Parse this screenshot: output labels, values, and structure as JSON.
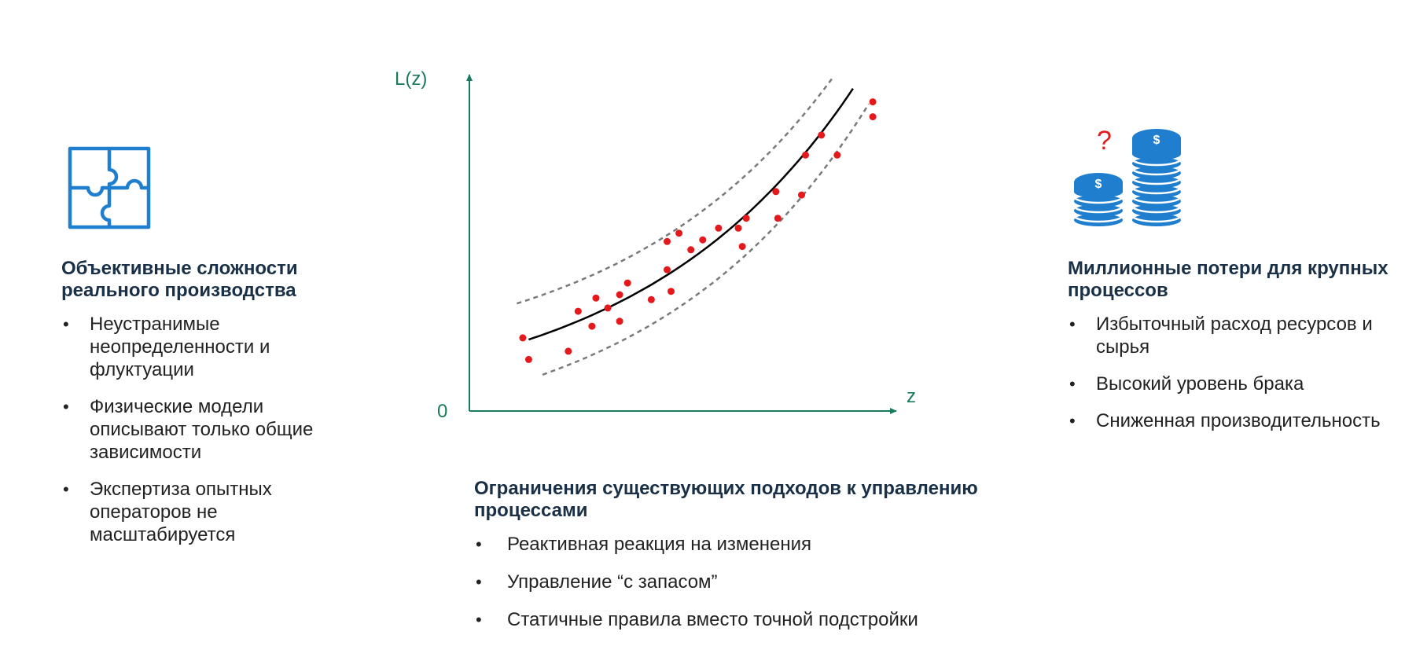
{
  "colors": {
    "heading": "#1a3047",
    "accent_blue": "#1f7fce",
    "axis": "#1a7a5e",
    "curve": "#000000",
    "band": "#7a7a7a",
    "points": "#e5191b",
    "question": "#e5191b"
  },
  "icons": {
    "left": "puzzle-icon",
    "right": "coin-stacks-icon",
    "question_mark": "?"
  },
  "left": {
    "heading": "Объективные сложности реального производства",
    "bullets": [
      "Неустранимые неопределенности и флуктуации",
      "Физические модели описывают только общие зависимости",
      "Экспертиза опытных операторов не масштабируется"
    ]
  },
  "center": {
    "heading": "Ограничения существующих подходов к управлению процессами",
    "bullets": [
      "Реактивная реакция на изменения",
      "Управление “с запасом”",
      "Статичные правила вместо точной подстройки"
    ]
  },
  "right": {
    "heading": "Миллионные потери для крупных процессов",
    "bullets": [
      "Избыточный расход ресурсов и сырья",
      "Высокий уровень брака",
      "Сниженная производительность"
    ]
  },
  "chart_data": {
    "type": "scatter",
    "ylabel": "L(z)",
    "xlabel": "z",
    "origin_label": "0",
    "xlim": [
      0,
      100
    ],
    "ylim": [
      0,
      100
    ],
    "grid": false,
    "curve": {
      "x0": 15,
      "x1": 97,
      "y_at_x0": 21.5,
      "y_at_x1": 97
    },
    "band_offset": 12,
    "points": [
      {
        "x": 13.5,
        "y": 22
      },
      {
        "x": 15,
        "y": 15.5
      },
      {
        "x": 25,
        "y": 18
      },
      {
        "x": 27.5,
        "y": 30
      },
      {
        "x": 31,
        "y": 25.5
      },
      {
        "x": 32,
        "y": 34
      },
      {
        "x": 35,
        "y": 31
      },
      {
        "x": 38,
        "y": 35
      },
      {
        "x": 38,
        "y": 27
      },
      {
        "x": 40,
        "y": 38.5
      },
      {
        "x": 46,
        "y": 33.5
      },
      {
        "x": 50,
        "y": 42.5
      },
      {
        "x": 51,
        "y": 36
      },
      {
        "x": 50,
        "y": 51
      },
      {
        "x": 53,
        "y": 53.5
      },
      {
        "x": 56,
        "y": 48.5
      },
      {
        "x": 59,
        "y": 51.5
      },
      {
        "x": 63,
        "y": 55
      },
      {
        "x": 68,
        "y": 55
      },
      {
        "x": 69,
        "y": 49.5
      },
      {
        "x": 70,
        "y": 58
      },
      {
        "x": 77.5,
        "y": 66
      },
      {
        "x": 78,
        "y": 58
      },
      {
        "x": 84,
        "y": 65
      },
      {
        "x": 85,
        "y": 77
      },
      {
        "x": 89,
        "y": 83
      },
      {
        "x": 93,
        "y": 77
      },
      {
        "x": 102,
        "y": 88.5
      },
      {
        "x": 102,
        "y": 93
      }
    ]
  }
}
